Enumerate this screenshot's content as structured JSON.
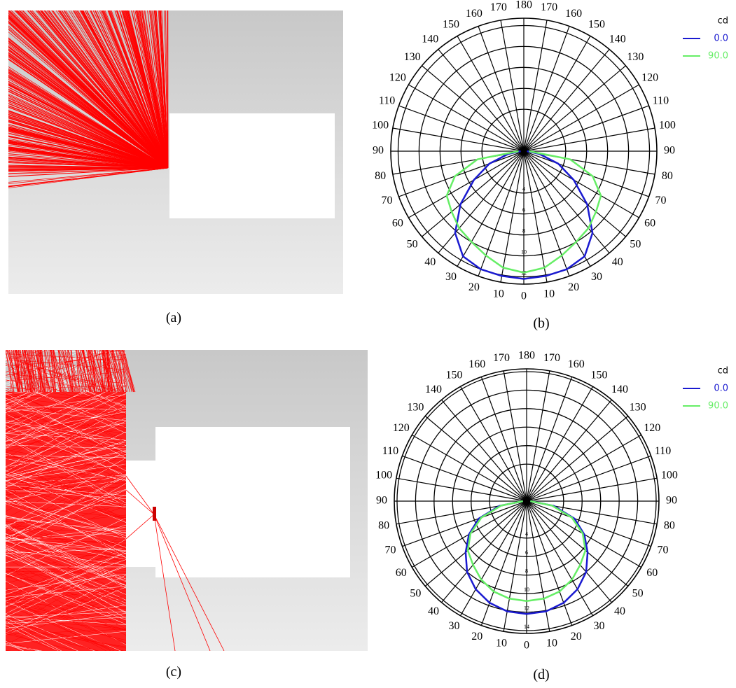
{
  "captions": [
    "(a)",
    "(b)",
    "(c)",
    "(d)"
  ],
  "chart_data": [
    {
      "type": "polar",
      "legend_title": "cd",
      "angles": [
        0,
        10,
        20,
        30,
        40,
        50,
        60,
        70,
        80,
        90
      ],
      "series": [
        {
          "name": "0.0",
          "color": "#1a1ad0",
          "values": [
            12.2,
            12.1,
            12.0,
            11.6,
            10.2,
            7.9,
            5.5,
            3.5,
            1.5,
            0.3
          ]
        },
        {
          "name": "90.0",
          "color": "#66ee66",
          "values": [
            11.6,
            11.3,
            10.6,
            10.0,
            9.6,
            9.0,
            8.5,
            7.0,
            4.5,
            0.5
          ]
        }
      ],
      "rlim": [
        0,
        12.7
      ],
      "rticks": [
        4,
        6,
        8,
        10,
        12
      ],
      "angle_ticks": [
        0,
        10,
        20,
        30,
        40,
        50,
        60,
        70,
        80,
        90,
        100,
        110,
        120,
        130,
        140,
        150,
        160,
        170,
        180
      ]
    },
    {
      "type": "polar",
      "legend_title": "cd",
      "angles": [
        0,
        10,
        20,
        30,
        40,
        50,
        60,
        70,
        80,
        90
      ],
      "series": [
        {
          "name": "0.0",
          "color": "#1a1ad0",
          "values": [
            12.2,
            12.1,
            11.7,
            11.0,
            10.0,
            8.6,
            7.2,
            5.5,
            3.0,
            0.4
          ]
        },
        {
          "name": "90.0",
          "color": "#66ee66",
          "values": [
            10.8,
            10.7,
            10.4,
            9.8,
            9.0,
            8.3,
            7.0,
            5.2,
            2.8,
            0.4
          ]
        }
      ],
      "rlim": [
        0,
        14.3
      ],
      "rticks": [
        4,
        6,
        8,
        10,
        12,
        14
      ],
      "angle_ticks": [
        0,
        10,
        20,
        30,
        40,
        50,
        60,
        70,
        80,
        90,
        100,
        110,
        120,
        130,
        140,
        150,
        160,
        170,
        180
      ]
    }
  ]
}
